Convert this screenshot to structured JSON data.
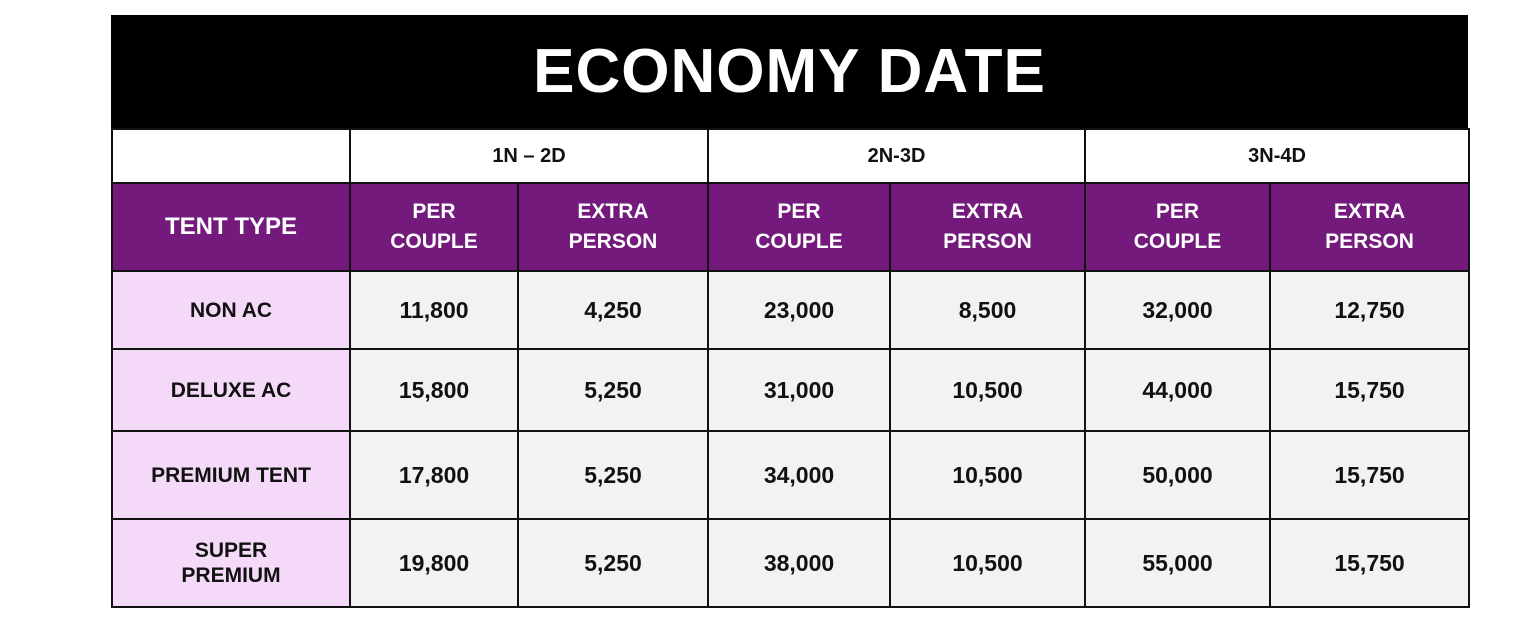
{
  "title": "ECONOMY DATE",
  "durations": [
    "1N – 2D",
    "2N-3D",
    "3N-4D"
  ],
  "subheaders": {
    "tent_type": "TENT TYPE",
    "per_couple": [
      "PER",
      "COUPLE"
    ],
    "extra_person": [
      "EXTRA",
      "PERSON"
    ]
  },
  "colors": {
    "header_purple": "#731a7c",
    "type_pink": "#f5d9f8",
    "cell_gray": "#f2f2f2",
    "title_bg": "#000000"
  },
  "rows": [
    {
      "type": [
        "NON AC"
      ],
      "values": [
        "11,800",
        "4,250",
        "23,000",
        "8,500",
        "32,000",
        "12,750"
      ]
    },
    {
      "type": [
        "DELUXE AC"
      ],
      "values": [
        "15,800",
        "5,250",
        "31,000",
        "10,500",
        "44,000",
        "15,750"
      ]
    },
    {
      "type": [
        "PREMIUM TENT"
      ],
      "values": [
        "17,800",
        "5,250",
        "34,000",
        "10,500",
        "50,000",
        "15,750"
      ]
    },
    {
      "type": [
        "SUPER",
        "PREMIUM"
      ],
      "values": [
        "19,800",
        "5,250",
        "38,000",
        "10,500",
        "55,000",
        "15,750"
      ]
    }
  ]
}
